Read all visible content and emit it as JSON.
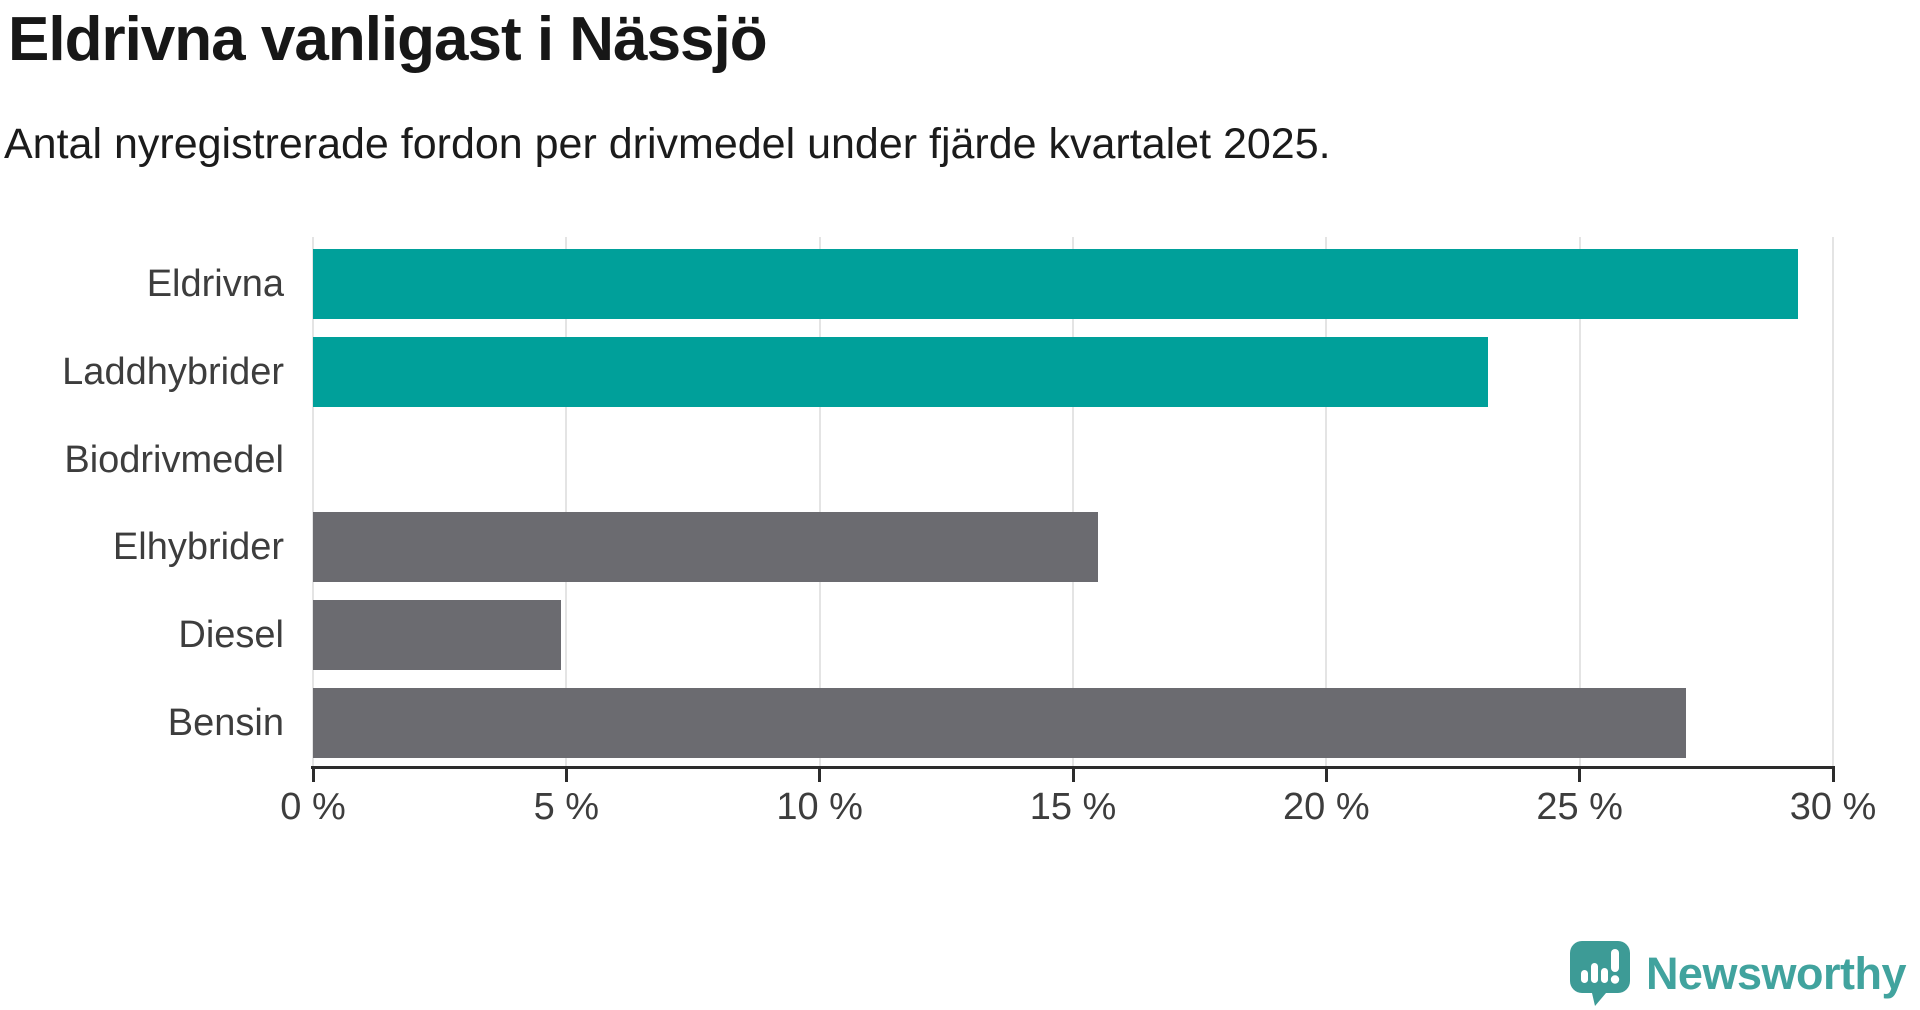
{
  "header": {
    "title": "Eldrivna vanligast i Nässjö",
    "subtitle": "Antal nyregistrerade fordon per drivmedel under fjärde kvartalet 2025."
  },
  "chart_data": {
    "type": "bar",
    "orientation": "horizontal",
    "title": "Eldrivna vanligast i Nässjö",
    "subtitle": "Antal nyregistrerade fordon per drivmedel under fjärde kvartalet 2025.",
    "categories": [
      "Eldrivna",
      "Laddhybrider",
      "Biodrivmedel",
      "Elhybrider",
      "Diesel",
      "Bensin"
    ],
    "values": [
      29.3,
      23.2,
      0,
      15.5,
      4.9,
      27.1
    ],
    "unit": "%",
    "highlighted": [
      true,
      true,
      false,
      false,
      false,
      false
    ],
    "xlim": [
      0,
      30
    ],
    "x_tick_values": [
      0,
      5,
      10,
      15,
      20,
      25,
      30
    ],
    "x_tick_labels": [
      "0 %",
      "5 %",
      "10 %",
      "15 %",
      "20 %",
      "25 %",
      "30 %"
    ],
    "grid": "vertical-light",
    "legend": "none"
  },
  "colors": {
    "bar_highlight": "#00a09a",
    "bar_default": "#6b6b70",
    "grid": "#e4e4e4",
    "axis": "#2c2c2c",
    "label_text": "#3d3d3d",
    "title_text": "#171717",
    "logo_bubble": "#3d9b96",
    "logo_text": "#41a39e"
  },
  "branding": {
    "logo_text": "Newsworthy",
    "logo_icon": "newsworthy-bar-chart-bubble-icon"
  }
}
